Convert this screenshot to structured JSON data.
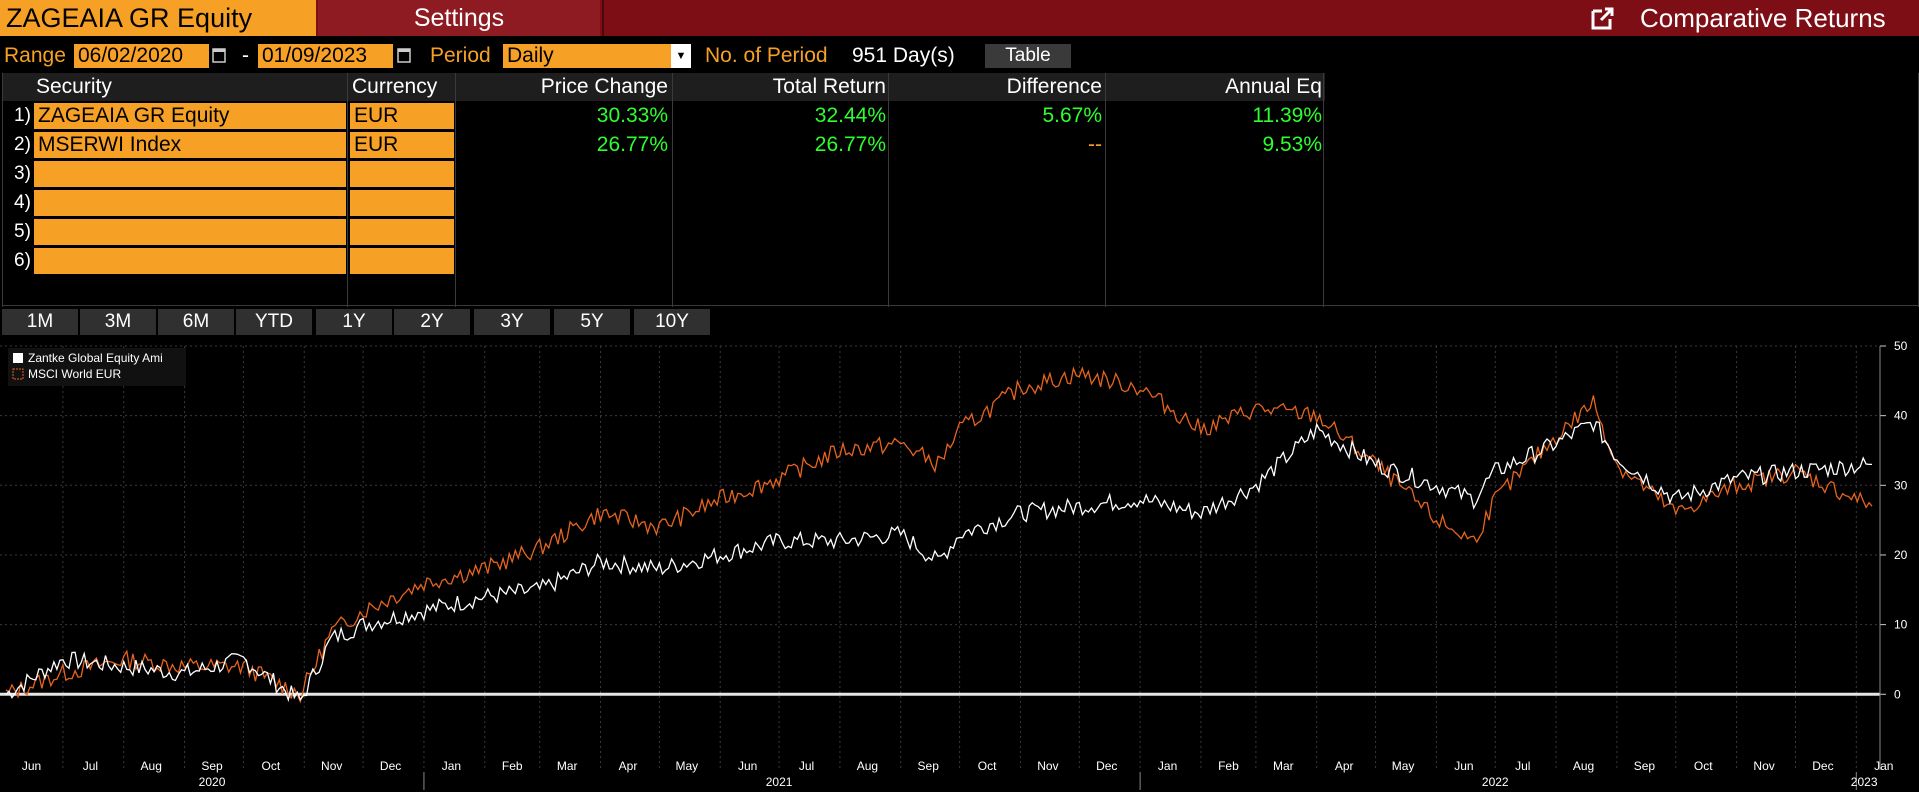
{
  "header": {
    "ticker": "ZAGEAIA GR Equity",
    "settings_label": "Settings",
    "app_title": "Comparative Returns",
    "icon": "export-icon"
  },
  "controls": {
    "range_label": "Range",
    "start_date": "06/02/2020",
    "dash": "-",
    "end_date": "01/09/2023",
    "period_label": "Period",
    "period_value": "Daily",
    "num_period_label": "No. of Period",
    "num_period_value": "951 Day(s)",
    "table_button": "Table"
  },
  "table": {
    "columns": [
      "Security",
      "Currency",
      "Price Change",
      "Total Return",
      "Difference",
      "Annual Eq"
    ],
    "rows": [
      {
        "num": "1)",
        "security": "ZAGEAIA GR Equity",
        "currency": "EUR",
        "price_change": "30.33%",
        "total_return": "32.44%",
        "difference": "5.67%",
        "annual_eq": "11.39%"
      },
      {
        "num": "2)",
        "security": "MSERWI Index",
        "currency": "EUR",
        "price_change": "26.77%",
        "total_return": "26.77%",
        "difference": "--",
        "annual_eq": "9.53%"
      },
      {
        "num": "3)",
        "security": "",
        "currency": ""
      },
      {
        "num": "4)",
        "security": "",
        "currency": ""
      },
      {
        "num": "5)",
        "security": "",
        "currency": ""
      },
      {
        "num": "6)",
        "security": "",
        "currency": ""
      }
    ]
  },
  "period_buttons": [
    "1M",
    "3M",
    "6M",
    "YTD",
    "1Y",
    "2Y",
    "3Y",
    "5Y",
    "10Y"
  ],
  "colors": {
    "orange": "#f6a126",
    "series1": "#ffffff",
    "series2": "#e8641e",
    "green": "#2dff2d",
    "titlebar": "#7d0e16"
  },
  "chart_data": {
    "type": "line",
    "legend_position": "top-left",
    "grid": true,
    "ylim": [
      -8,
      50
    ],
    "y_ticks": [
      0,
      10,
      20,
      30,
      40,
      50
    ],
    "months": [
      "Jun",
      "Jul",
      "Aug",
      "Sep",
      "Oct",
      "Nov",
      "Dec",
      "Jan",
      "Feb",
      "Mar",
      "Apr",
      "May",
      "Jun",
      "Jul",
      "Aug",
      "Sep",
      "Oct",
      "Nov",
      "Dec",
      "Jan",
      "Feb",
      "Mar",
      "Apr",
      "May",
      "Jun",
      "Jul",
      "Aug",
      "Sep",
      "Oct",
      "Nov",
      "Dec",
      "Jan"
    ],
    "years": [
      "2020",
      "2021",
      "2022",
      "2023"
    ],
    "series": [
      {
        "name": "Zantke Global Equity Ami",
        "x": [
          "2020-06-02",
          "2020-07-01",
          "2020-08-01",
          "2020-09-01",
          "2020-10-01",
          "2020-10-30",
          "2020-11-15",
          "2020-12-01",
          "2021-01-01",
          "2021-02-01",
          "2021-03-01",
          "2021-04-01",
          "2021-05-01",
          "2021-06-01",
          "2021-07-01",
          "2021-08-01",
          "2021-09-01",
          "2021-09-20",
          "2021-10-01",
          "2021-11-01",
          "2021-12-01",
          "2022-01-01",
          "2022-02-01",
          "2022-03-01",
          "2022-04-01",
          "2022-05-01",
          "2022-06-01",
          "2022-06-20",
          "2022-07-01",
          "2022-08-01",
          "2022-08-20",
          "2022-09-01",
          "2022-10-01",
          "2022-11-01",
          "2022-12-01",
          "2023-01-09"
        ],
        "values": [
          0,
          5,
          4,
          3,
          5,
          -1,
          8,
          10,
          12,
          14,
          15,
          19,
          18,
          20,
          22,
          22,
          23,
          19,
          23,
          26,
          27,
          28,
          26,
          30,
          38,
          33,
          30,
          28,
          32,
          36,
          39,
          34,
          28,
          31,
          32,
          33
        ]
      },
      {
        "name": "MSCI World EUR",
        "x": [
          "2020-06-02",
          "2020-07-01",
          "2020-08-01",
          "2020-09-01",
          "2020-10-01",
          "2020-10-30",
          "2020-11-15",
          "2020-12-01",
          "2021-01-01",
          "2021-02-01",
          "2021-03-01",
          "2021-04-01",
          "2021-05-01",
          "2021-06-01",
          "2021-07-01",
          "2021-08-01",
          "2021-09-01",
          "2021-09-20",
          "2021-10-01",
          "2021-11-01",
          "2021-12-01",
          "2022-01-01",
          "2022-02-01",
          "2022-03-01",
          "2022-04-01",
          "2022-05-01",
          "2022-06-01",
          "2022-06-20",
          "2022-07-01",
          "2022-08-01",
          "2022-08-20",
          "2022-09-01",
          "2022-10-01",
          "2022-11-01",
          "2022-12-01",
          "2023-01-09"
        ],
        "values": [
          0,
          3,
          5,
          4,
          4,
          0,
          9,
          12,
          16,
          18,
          21,
          26,
          24,
          28,
          31,
          35,
          36,
          33,
          38,
          44,
          46,
          44,
          38,
          41,
          40,
          33,
          25,
          22,
          28,
          37,
          42,
          33,
          26,
          30,
          32,
          27
        ]
      }
    ]
  }
}
